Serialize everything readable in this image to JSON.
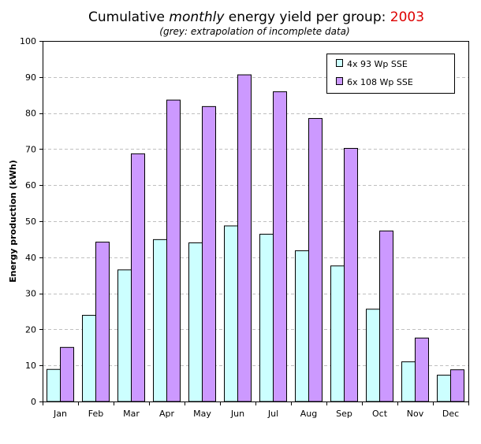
{
  "chart_data": {
    "type": "bar",
    "title": {
      "part1": "Cumulative ",
      "part2_italic": "monthly",
      "part3": "  energy yield per group: ",
      "year": "2003",
      "year_color": "#dd0000"
    },
    "subtitle": "(grey: extrapolation of incomplete data)",
    "xlabel": "",
    "ylabel": "Energy production (kWh)",
    "ylim": [
      0,
      100
    ],
    "yticks": [
      0,
      10,
      20,
      30,
      40,
      50,
      60,
      70,
      80,
      90,
      100
    ],
    "grid": true,
    "legend_position": "top-right",
    "categories": [
      "Jan",
      "Feb",
      "Mar",
      "Apr",
      "May",
      "Jun",
      "Jul",
      "Aug",
      "Sep",
      "Oct",
      "Nov",
      "Dec"
    ],
    "series": [
      {
        "name": "4x 93 Wp SSE",
        "color": "#ccffff",
        "values": [
          8.9,
          23.9,
          36.5,
          44.9,
          44.0,
          48.7,
          46.4,
          41.8,
          37.6,
          25.6,
          11.0,
          7.3
        ]
      },
      {
        "name": "6x 108 Wp SSE",
        "color": "#cc99ff",
        "values": [
          15.0,
          44.2,
          68.7,
          83.6,
          81.8,
          90.6,
          85.9,
          78.5,
          70.2,
          47.3,
          17.6,
          8.8
        ]
      }
    ]
  }
}
